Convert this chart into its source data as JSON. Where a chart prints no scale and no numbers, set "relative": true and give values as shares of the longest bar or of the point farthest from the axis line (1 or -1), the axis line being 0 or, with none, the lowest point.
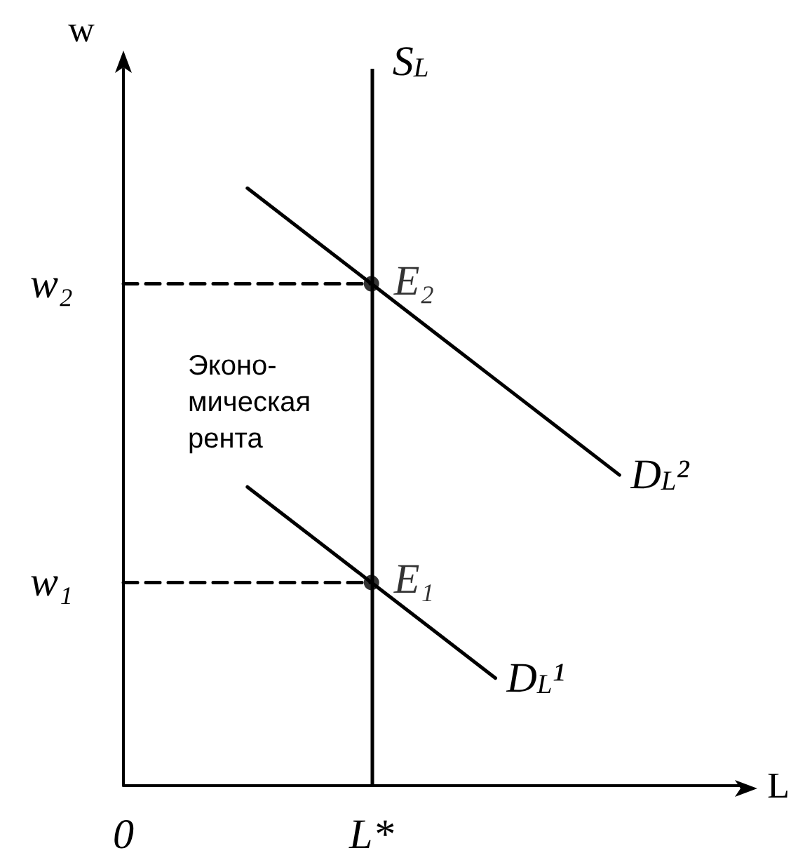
{
  "chart_data": {
    "type": "line",
    "relative": true,
    "xlabel": "L",
    "ylabel": "w",
    "marker": "none",
    "categories": [
      "0",
      null,
      null,
      null,
      "L*",
      null,
      null,
      null,
      null,
      null,
      null
    ],
    "series": [
      {
        "name": "D$_{L}$²",
        "color": "#000000",
        "values": [
          null,
          null,
          1,
          0.92,
          0.84,
          0.76,
          0.68,
          0.6,
          0.52,
          null,
          null
        ]
      },
      {
        "name": "D$_{L}$¹",
        "color": "#000000",
        "values": [
          null,
          null,
          0.5,
          0.42,
          0.34,
          0.26,
          0.18,
          null,
          null,
          null,
          null
        ]
      },
      {
        "name": "w₂",
        "line_style": "dashed",
        "color": "#000000",
        "values": [
          0.84,
          0.84,
          0.84,
          0.84,
          0.84,
          null,
          null,
          null,
          null,
          null,
          null
        ]
      },
      {
        "name": "w₁",
        "line_style": "dashed",
        "color": "#000000",
        "values": [
          0.34,
          0.34,
          0.34,
          0.34,
          0.34,
          null,
          null,
          null,
          null,
          null,
          null
        ]
      },
      {
        "type": "scatter",
        "marker": "circle",
        "color": "#000000",
        "x": [
          "L*",
          "L*"
        ],
        "values": [
          0.84,
          0.34
        ]
      }
    ],
    "ref_lines": [
      {
        "axis": "x",
        "value": "L*",
        "label": "S$_{L}$",
        "color": "#000000"
      }
    ],
    "annotations": [
      {
        "text": "E₂",
        "x": "L*",
        "y": 0.84
      },
      {
        "text": "E₁",
        "x": "L*",
        "y": 0.34
      },
      "Эконо-\nмическая\nрента"
    ]
  }
}
